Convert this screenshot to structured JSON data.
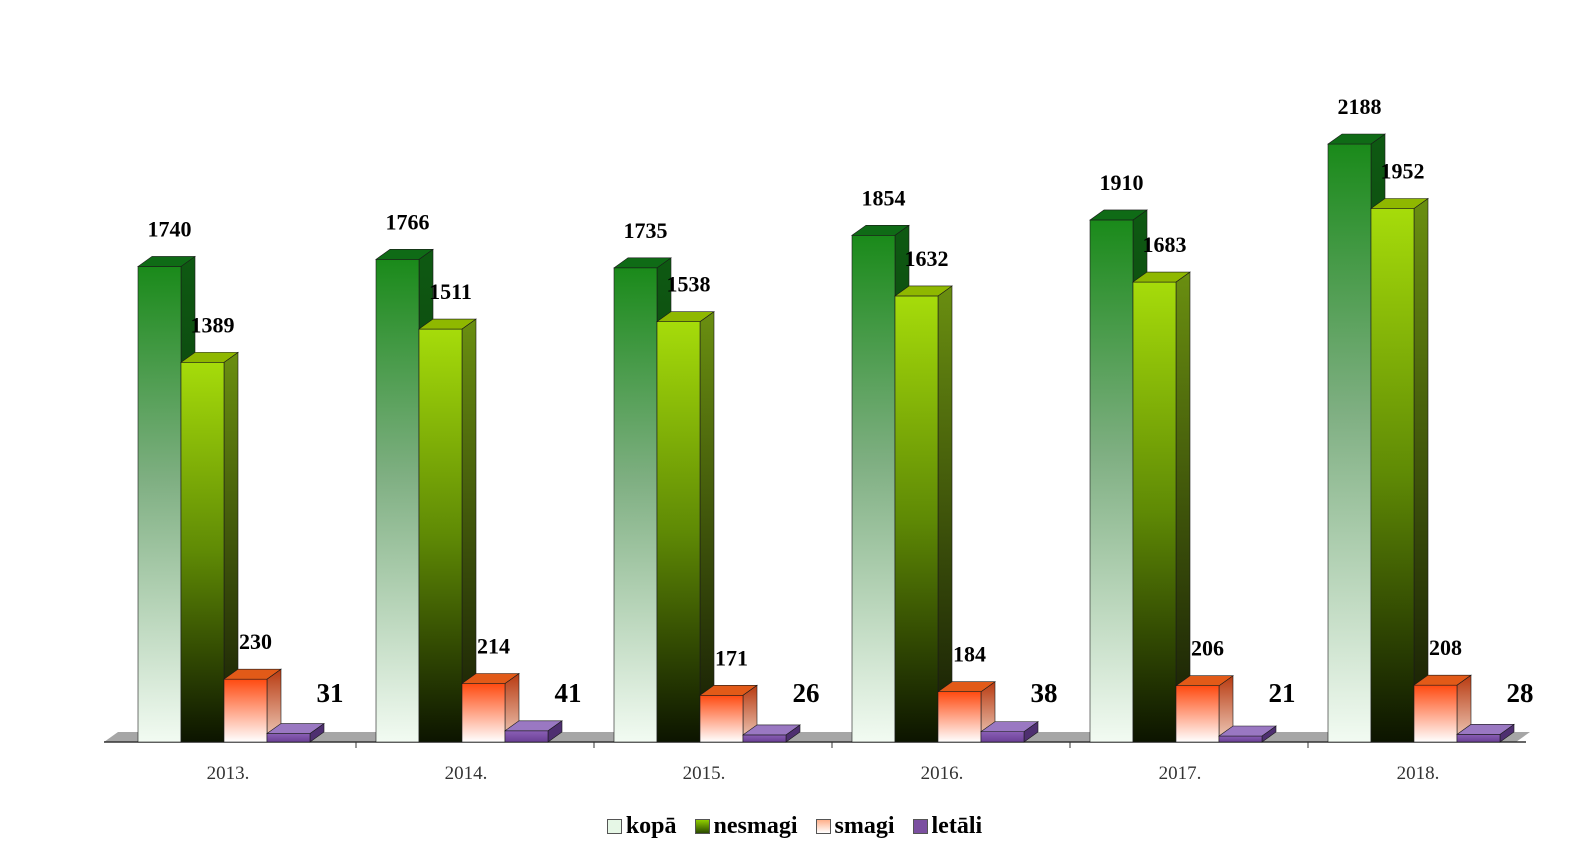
{
  "chart_data": {
    "type": "bar",
    "categories": [
      "2013.",
      "2014.",
      "2015.",
      "2016.",
      "2017.",
      "2018."
    ],
    "series": [
      {
        "name": "kopā",
        "values": [
          1740,
          1766,
          1735,
          1854,
          1910,
          2188
        ]
      },
      {
        "name": "nesmagi",
        "values": [
          1389,
          1511,
          1538,
          1632,
          1683,
          1952
        ]
      },
      {
        "name": "smagi",
        "values": [
          230,
          214,
          171,
          184,
          206,
          208
        ]
      },
      {
        "name": "letāli",
        "values": [
          31,
          41,
          26,
          38,
          21,
          28
        ]
      }
    ],
    "title": "",
    "xlabel": "",
    "ylabel": "",
    "ylim": [
      0,
      2300
    ],
    "grid": false,
    "legend_position": "bottom",
    "colors": {
      "kopa": "#1a7a1a",
      "nesmagi": "#8fce00",
      "smagi": "#ff5a1a",
      "letali": "#7b4fa0"
    }
  }
}
